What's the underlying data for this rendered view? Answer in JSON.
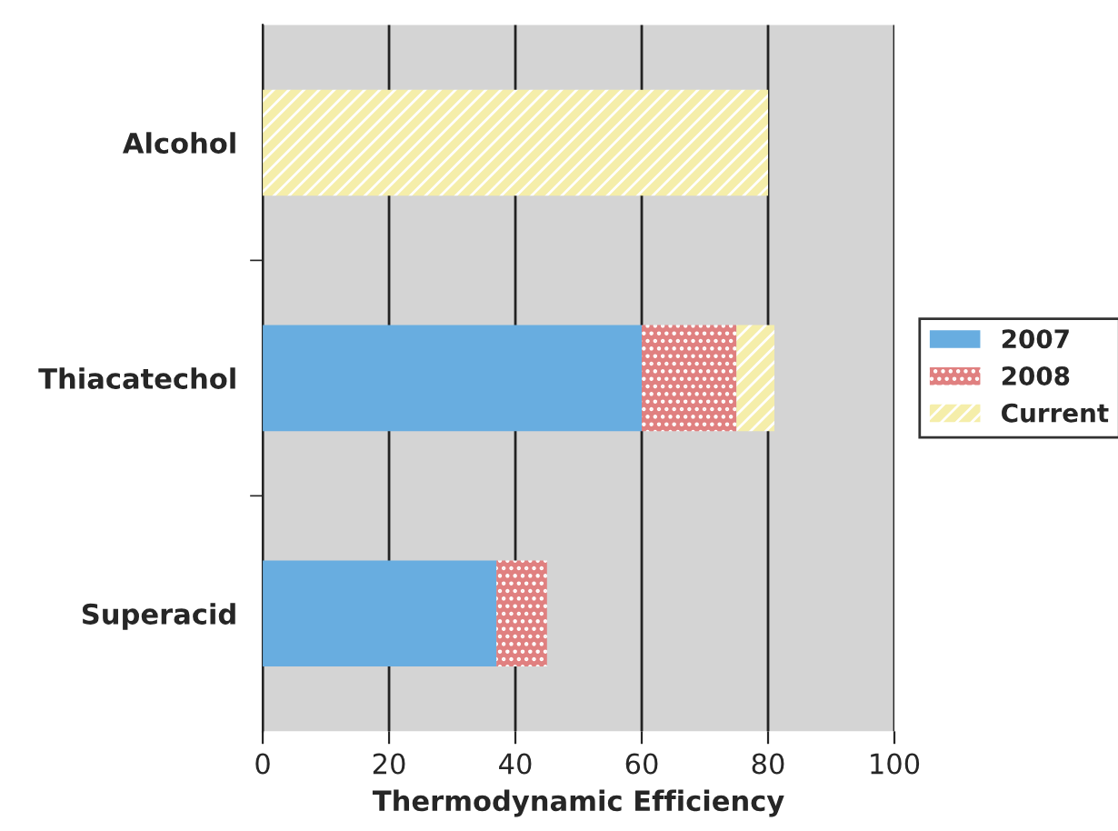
{
  "chart_data": {
    "type": "bar",
    "orientation": "horizontal",
    "stacked": true,
    "xlabel": "Thermodynamic Efficiency",
    "categories": [
      "Alcohol",
      "Thiacatechol",
      "Superacid"
    ],
    "series": [
      {
        "name": "2007",
        "color": "#68ade0",
        "values": [
          null,
          60,
          37
        ]
      },
      {
        "name": "2008",
        "color": "#e08080",
        "values": [
          null,
          15,
          8
        ]
      },
      {
        "name": "Current",
        "color": "#f5eeaa",
        "values": [
          80,
          6,
          null
        ]
      }
    ],
    "xlim": [
      0,
      100
    ],
    "xticks": [
      0,
      20,
      40,
      60,
      80,
      100
    ],
    "grid": "x",
    "legend": "right"
  }
}
